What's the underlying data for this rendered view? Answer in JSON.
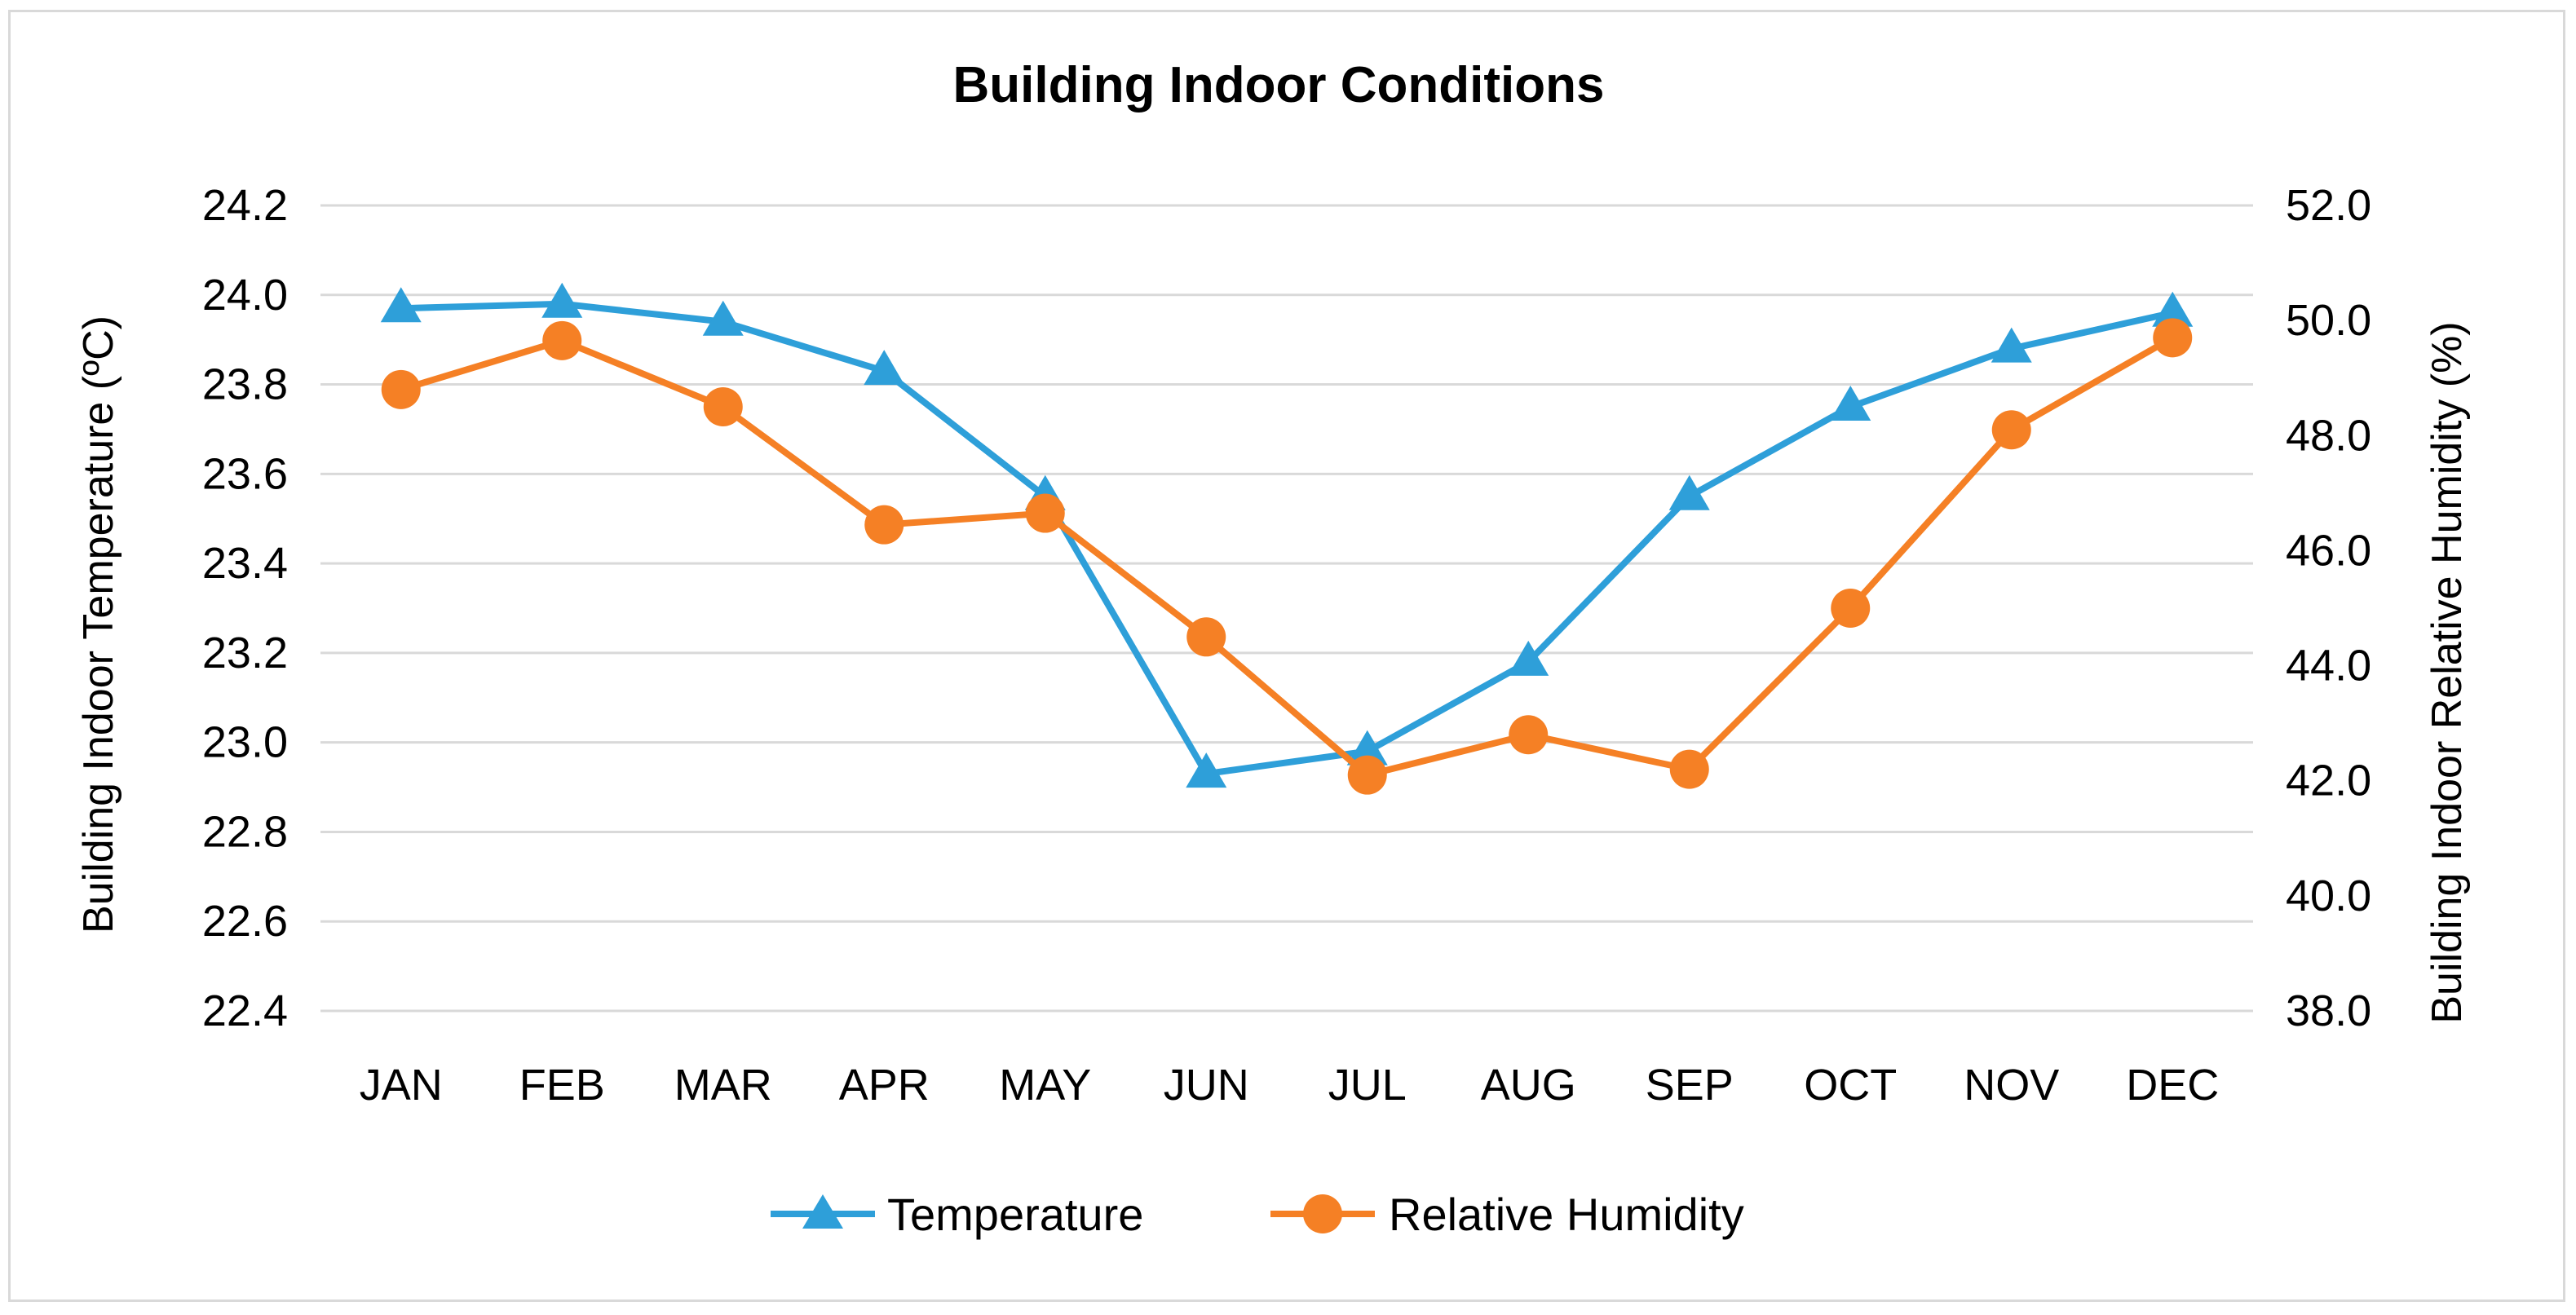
{
  "chart_data": {
    "type": "line",
    "title": "Building Indoor Conditions",
    "categories": [
      "JAN",
      "FEB",
      "MAR",
      "APR",
      "MAY",
      "JUN",
      "JUL",
      "AUG",
      "SEP",
      "OCT",
      "NOV",
      "DEC"
    ],
    "ylabel_left": "Building Indoor Temperature (ºC)",
    "ylabel_right": "Building Indoor Relative Humidity (%)",
    "ylim_left": [
      22.4,
      24.2
    ],
    "ylim_right": [
      38.0,
      52.0
    ],
    "yticks_left": [
      "22.4",
      "22.6",
      "22.8",
      "23.0",
      "23.2",
      "23.4",
      "23.6",
      "23.8",
      "24.0",
      "24.2"
    ],
    "yticks_right": [
      "38.0",
      "40.0",
      "42.0",
      "44.0",
      "46.0",
      "48.0",
      "50.0",
      "52.0"
    ],
    "grid": true,
    "legend_position": "bottom",
    "series": [
      {
        "name": "Temperature",
        "axis": "left",
        "marker": "triangle",
        "color": "#2E9FD9",
        "values": [
          23.97,
          23.98,
          23.94,
          23.83,
          23.55,
          22.93,
          22.98,
          23.18,
          23.55,
          23.75,
          23.88,
          23.96
        ]
      },
      {
        "name": "Relative Humidity",
        "axis": "right",
        "marker": "circle",
        "color": "#F58025",
        "values": [
          48.8,
          49.65,
          48.5,
          46.45,
          46.65,
          44.5,
          42.1,
          42.8,
          42.2,
          45.0,
          48.1,
          49.7
        ]
      }
    ]
  }
}
